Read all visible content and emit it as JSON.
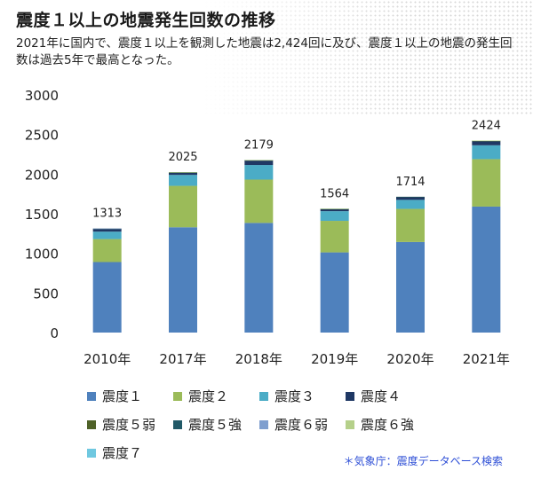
{
  "header": {
    "title": "震度１以上の地震発生回数の推移",
    "subtitle": "2021年に国内で、震度１以上を観測した地震は2,424回に及び、震度１以上の地震の発生回数は過去5年で最高となった。"
  },
  "source": "＊気象庁：震度データベース検索",
  "colors": {
    "s1": "#4f81bd",
    "s2": "#9bbb59",
    "s3": "#4bacc6",
    "s4": "#1f3864",
    "s5w": "#4f6228",
    "s5s": "#215967",
    "s6w": "#7f9fcf",
    "s6s": "#b5d08a",
    "s7": "#6fc8e0"
  },
  "chart_data": {
    "type": "bar",
    "stacked": true,
    "categories": [
      "2010年",
      "2017年",
      "2018年",
      "2019年",
      "2020年",
      "2021年"
    ],
    "totals": [
      1313,
      2025,
      2179,
      1564,
      1714,
      2424
    ],
    "series": [
      {
        "name": "震度１",
        "color_key": "s1",
        "values": [
          890,
          1329,
          1384,
          1012,
          1143,
          1590
        ]
      },
      {
        "name": "震度２",
        "color_key": "s2",
        "values": [
          290,
          523,
          547,
          398,
          418,
          599
        ]
      },
      {
        "name": "震度３",
        "color_key": "s3",
        "values": [
          94,
          138,
          184,
          122,
          114,
          175
        ]
      },
      {
        "name": "震度４",
        "color_key": "s4",
        "values": [
          34,
          32,
          55,
          26,
          36,
          50
        ]
      },
      {
        "name": "震度５弱",
        "color_key": "s5w",
        "values": [
          3,
          1,
          5,
          3,
          2,
          6
        ]
      },
      {
        "name": "震度５強",
        "color_key": "s5s",
        "values": [
          1,
          1,
          2,
          2,
          1,
          3
        ]
      },
      {
        "name": "震度６弱",
        "color_key": "s6w",
        "values": [
          1,
          0,
          1,
          0,
          0,
          0
        ]
      },
      {
        "name": "震度６強",
        "color_key": "s6s",
        "values": [
          0,
          1,
          1,
          1,
          0,
          1
        ]
      },
      {
        "name": "震度７",
        "color_key": "s7",
        "values": [
          0,
          0,
          0,
          0,
          0,
          0
        ]
      }
    ],
    "ylim": [
      0,
      3000
    ],
    "yticks": [
      0,
      500,
      1000,
      1500,
      2000,
      2500,
      3000
    ],
    "grid": false,
    "legend": "bottom"
  }
}
